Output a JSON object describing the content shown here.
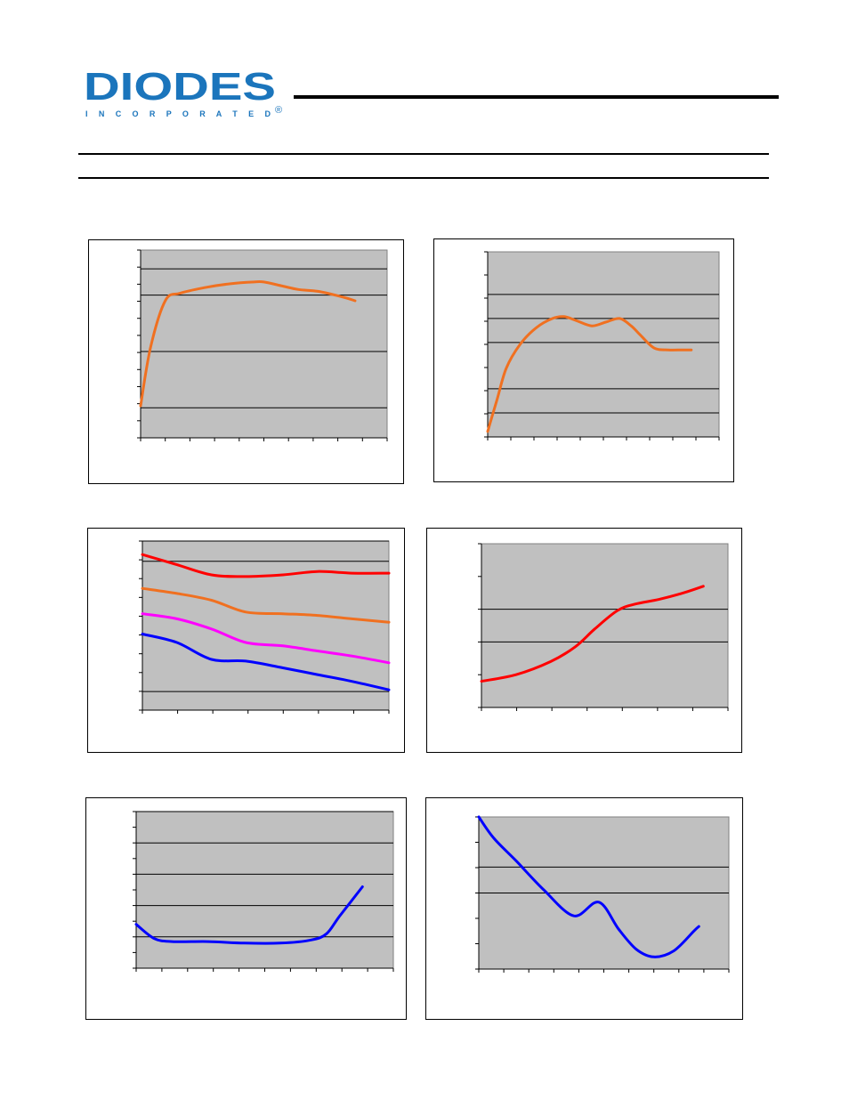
{
  "header": {
    "logo": {
      "brand_text": "DIODES",
      "sub_text": "I N C O R P O R A T E D",
      "registered_mark": "®"
    },
    "colors": {
      "logo_blue": "#1B75BC",
      "plot_area": "#C0C0C0",
      "gridline": "#000000"
    }
  },
  "chart_data": [
    {
      "type": "line",
      "title": "",
      "xlabel": "",
      "ylabel": "",
      "x_ticks": 10,
      "y_ticks": 11,
      "gridlines_y": [
        0.16,
        0.46,
        0.76,
        0.9
      ],
      "ylim": [
        0,
        1
      ],
      "xlim": [
        0,
        1
      ],
      "series": [
        {
          "color": "#F07020",
          "x": [
            0.0,
            0.04,
            0.1,
            0.16,
            0.26,
            0.36,
            0.46,
            0.5,
            0.57,
            0.64,
            0.72,
            0.82,
            0.87
          ],
          "y": [
            0.17,
            0.48,
            0.73,
            0.77,
            0.8,
            0.82,
            0.83,
            0.83,
            0.81,
            0.79,
            0.78,
            0.75,
            0.73
          ]
        }
      ]
    },
    {
      "type": "line",
      "title": "",
      "xlabel": "",
      "ylabel": "",
      "x_ticks": 10,
      "y_ticks": 8,
      "gridlines_y": [
        0.13,
        0.26,
        0.51,
        0.64,
        0.77
      ],
      "ylim": [
        0,
        1
      ],
      "xlim": [
        0,
        1
      ],
      "series": [
        {
          "color": "#F07020",
          "x": [
            0.0,
            0.04,
            0.08,
            0.14,
            0.21,
            0.28,
            0.33,
            0.38,
            0.45,
            0.51,
            0.57,
            0.62,
            0.66,
            0.72,
            0.78,
            0.84,
            0.88
          ],
          "y": [
            0.03,
            0.2,
            0.37,
            0.5,
            0.59,
            0.64,
            0.65,
            0.63,
            0.6,
            0.62,
            0.64,
            0.6,
            0.55,
            0.48,
            0.47,
            0.47,
            0.47
          ]
        }
      ]
    },
    {
      "type": "line",
      "title": "",
      "xlabel": "",
      "ylabel": "",
      "x_ticks": 7,
      "y_ticks": 9,
      "gridlines_y": [
        0.11,
        0.88,
        1.0
      ],
      "ylim": [
        0,
        1
      ],
      "xlim": [
        0,
        1
      ],
      "series": [
        {
          "color": "#FF0000",
          "x": [
            0.0,
            0.14,
            0.28,
            0.42,
            0.57,
            0.71,
            0.85,
            1.0
          ],
          "y": [
            0.92,
            0.86,
            0.8,
            0.79,
            0.8,
            0.82,
            0.81,
            0.81
          ]
        },
        {
          "color": "#F07020",
          "x": [
            0.0,
            0.14,
            0.28,
            0.42,
            0.57,
            0.71,
            0.85,
            1.0
          ],
          "y": [
            0.72,
            0.69,
            0.65,
            0.58,
            0.57,
            0.56,
            0.54,
            0.52
          ]
        },
        {
          "color": "#FF00FF",
          "x": [
            0.0,
            0.14,
            0.28,
            0.42,
            0.57,
            0.71,
            0.85,
            1.0
          ],
          "y": [
            0.57,
            0.54,
            0.48,
            0.4,
            0.38,
            0.35,
            0.32,
            0.28
          ]
        },
        {
          "color": "#0000FF",
          "x": [
            0.0,
            0.14,
            0.28,
            0.42,
            0.57,
            0.71,
            0.85,
            1.0
          ],
          "y": [
            0.45,
            0.4,
            0.3,
            0.29,
            0.25,
            0.21,
            0.17,
            0.12
          ]
        }
      ]
    },
    {
      "type": "line",
      "title": "",
      "xlabel": "",
      "ylabel": "",
      "x_ticks": 7,
      "y_ticks": 5,
      "gridlines_y": [
        0.4,
        0.6
      ],
      "ylim": [
        0,
        1
      ],
      "xlim": [
        0,
        1
      ],
      "series": [
        {
          "color": "#FF0000",
          "x": [
            0.0,
            0.14,
            0.28,
            0.38,
            0.46,
            0.55,
            0.62,
            0.72,
            0.82,
            0.9
          ],
          "y": [
            0.16,
            0.2,
            0.28,
            0.37,
            0.48,
            0.59,
            0.63,
            0.66,
            0.7,
            0.74
          ]
        }
      ]
    },
    {
      "type": "line",
      "title": "",
      "xlabel": "",
      "ylabel": "",
      "x_ticks": 10,
      "y_ticks": 10,
      "gridlines_y": [
        0.2,
        0.4,
        0.6,
        0.8,
        1.0
      ],
      "ylim": [
        0,
        1
      ],
      "xlim": [
        0,
        1
      ],
      "series": [
        {
          "color": "#0000FF",
          "x": [
            0.0,
            0.07,
            0.14,
            0.28,
            0.42,
            0.56,
            0.68,
            0.74,
            0.79,
            0.88
          ],
          "y": [
            0.28,
            0.19,
            0.17,
            0.17,
            0.16,
            0.16,
            0.18,
            0.22,
            0.33,
            0.52
          ]
        }
      ]
    },
    {
      "type": "line",
      "title": "",
      "xlabel": "",
      "ylabel": "",
      "x_ticks": 10,
      "y_ticks": 6,
      "gridlines_y": [
        0.5,
        0.67
      ],
      "ylim": [
        0,
        1
      ],
      "xlim": [
        0,
        1
      ],
      "series": [
        {
          "color": "#0000FF",
          "x": [
            0.0,
            0.06,
            0.15,
            0.26,
            0.38,
            0.48,
            0.56,
            0.63,
            0.7,
            0.78,
            0.86,
            0.88
          ],
          "y": [
            1.0,
            0.86,
            0.71,
            0.52,
            0.35,
            0.44,
            0.26,
            0.13,
            0.08,
            0.12,
            0.25,
            0.28
          ]
        }
      ]
    }
  ]
}
